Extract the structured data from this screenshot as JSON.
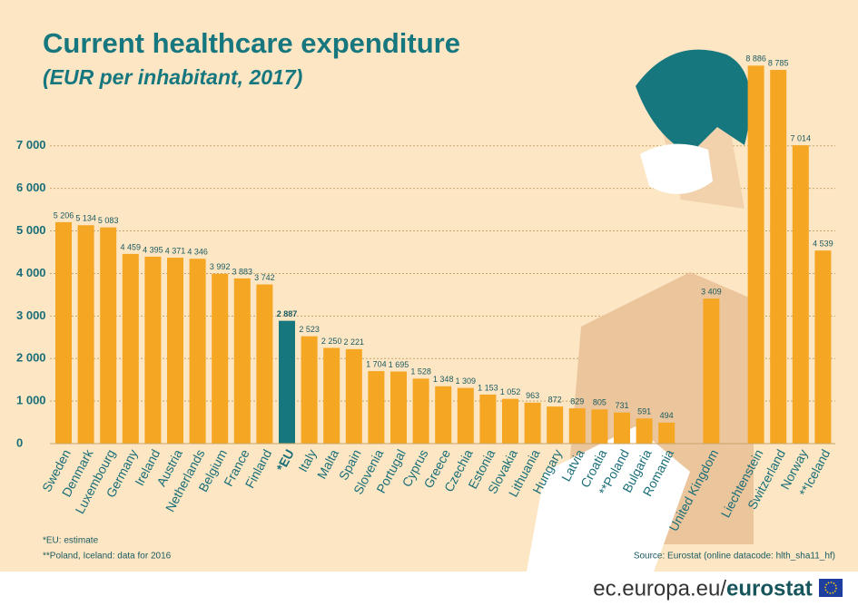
{
  "chart_data": {
    "type": "bar",
    "title": "Current healthcare expenditure",
    "subtitle": "(EUR per inhabitant, 2017)",
    "categories": [
      "Sweden",
      "Denmark",
      "Luxembourg",
      "Germany",
      "Ireland",
      "Austria",
      "Netherlands",
      "Belgium",
      "France",
      "Finland",
      "*EU",
      "Italy",
      "Malta",
      "Spain",
      "Slovenia",
      "Portugal",
      "Cyprus",
      "Greece",
      "Czechia",
      "Estonia",
      "Slovakia",
      "Lithuania",
      "Hungary",
      "Latvia",
      "Croatia",
      "**Poland",
      "Bulgaria",
      "Romania",
      null,
      "United Kingdom",
      null,
      "Liechtenstein",
      "Switzerland",
      "Norway",
      "**Iceland"
    ],
    "values": [
      5206,
      5134,
      5083,
      4459,
      4395,
      4371,
      4346,
      3992,
      3883,
      3742,
      2887,
      2523,
      2250,
      2221,
      1704,
      1695,
      1528,
      1348,
      1309,
      1153,
      1052,
      963,
      872,
      829,
      805,
      731,
      591,
      494,
      null,
      3409,
      null,
      8886,
      8785,
      7014,
      4539
    ],
    "value_labels": [
      "5 206",
      "5 134",
      "5 083",
      "4 459",
      "4 395",
      "4 371",
      "4 346",
      "3 992",
      "3 883",
      "3 742",
      "2 887",
      "2 523",
      "2 250",
      "2 221",
      "1 704",
      "1 695",
      "1 528",
      "1 348",
      "1 309",
      "1 153",
      "1 052",
      "963",
      "872",
      "829",
      "805",
      "731",
      "591",
      "494",
      null,
      "3 409",
      null,
      "8 886",
      "8 785",
      "7 014",
      "4 539"
    ],
    "colors": [
      "#f5a623",
      "#f5a623",
      "#f5a623",
      "#f5a623",
      "#f5a623",
      "#f5a623",
      "#f5a623",
      "#f5a623",
      "#f5a623",
      "#f5a623",
      "#17777f",
      "#f5a623",
      "#f5a623",
      "#f5a623",
      "#f5a623",
      "#f5a623",
      "#f5a623",
      "#f5a623",
      "#f5a623",
      "#f5a623",
      "#f5a623",
      "#f5a623",
      "#f5a623",
      "#f5a623",
      "#f5a623",
      "#f5a623",
      "#f5a623",
      "#f5a623",
      null,
      "#f5a623",
      null,
      "#f5a623",
      "#f5a623",
      "#f5a623",
      "#f5a623"
    ],
    "ylim": [
      0,
      9000
    ],
    "yticks": [
      {
        "value": 0,
        "label": "0"
      },
      {
        "value": 1000,
        "label": "1 000"
      },
      {
        "value": 2000,
        "label": "2 000"
      },
      {
        "value": 3000,
        "label": "3 000"
      },
      {
        "value": 4000,
        "label": "4 000"
      },
      {
        "value": 5000,
        "label": "5 000"
      },
      {
        "value": 6000,
        "label": "6 000"
      },
      {
        "value": 7000,
        "label": "7 000"
      }
    ],
    "grid": true,
    "footnotes": [
      "*EU: estimate",
      "**Poland, Iceland: data for 2016"
    ],
    "source": "Source:  Eurostat (online datacode: hlth_sha11_hf)",
    "url_prefix": "ec.europa.eu/",
    "url_brand": "eurostat"
  }
}
